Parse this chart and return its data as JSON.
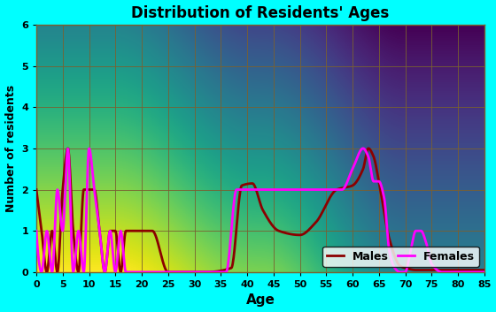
{
  "title": "Distribution of Residents' Ages",
  "xlabel": "Age",
  "ylabel": "Number of residents",
  "xlim": [
    0,
    85
  ],
  "ylim": [
    0,
    6
  ],
  "xticks": [
    0,
    5,
    10,
    15,
    20,
    25,
    30,
    35,
    40,
    45,
    50,
    55,
    60,
    65,
    70,
    75,
    80,
    85
  ],
  "yticks": [
    0,
    1,
    2,
    3,
    4,
    5,
    6
  ],
  "bg_color": "#00ffff",
  "plot_bg_left": "#e8c078",
  "plot_bg_right": "#7a4a20",
  "males_color": "#8B0000",
  "females_color": "#FF00FF",
  "males_key_ages": [
    0,
    1,
    2,
    3,
    4,
    5,
    6,
    7,
    8,
    9,
    10,
    11,
    12,
    13,
    14,
    15,
    16,
    17,
    18,
    19,
    20,
    22,
    25,
    28,
    32,
    37,
    39,
    41,
    43,
    46,
    50,
    53,
    57,
    60,
    62,
    63,
    64,
    65,
    67,
    69,
    70,
    72,
    75,
    80,
    85
  ],
  "males_key_vals": [
    2,
    1,
    0,
    1,
    0,
    2,
    3,
    1,
    0,
    2,
    2,
    2,
    1,
    0,
    1,
    1,
    0,
    1,
    1,
    1,
    1,
    1,
    0,
    0,
    0,
    0.1,
    2.1,
    2.15,
    1.5,
    1.0,
    0.9,
    1.2,
    2.0,
    2.1,
    2.5,
    3.0,
    2.8,
    2.2,
    0.8,
    0.15,
    0.1,
    0.05,
    0.05,
    0.05,
    0.05
  ],
  "females_key_ages": [
    0,
    1,
    2,
    3,
    4,
    5,
    6,
    7,
    8,
    9,
    10,
    11,
    12,
    13,
    14,
    15,
    16,
    17,
    18,
    22,
    27,
    36,
    38,
    40,
    45,
    50,
    55,
    58,
    60,
    62,
    63,
    64,
    65,
    66,
    67,
    68,
    69,
    70,
    71,
    72,
    73,
    74,
    75,
    77,
    80,
    83,
    85
  ],
  "females_key_vals": [
    1,
    0,
    1,
    0,
    2,
    1,
    3,
    0,
    1,
    0,
    3,
    2,
    1,
    0,
    1,
    0,
    1,
    0,
    0,
    0,
    0,
    0,
    2.0,
    2.0,
    2.0,
    2.0,
    2.0,
    2.0,
    2.5,
    3.0,
    2.8,
    2.2,
    2.2,
    1.8,
    0.5,
    0.1,
    0.0,
    0.0,
    0.5,
    1.0,
    1.0,
    0.7,
    0.2,
    0.0,
    0.0,
    0.0,
    0.0
  ]
}
